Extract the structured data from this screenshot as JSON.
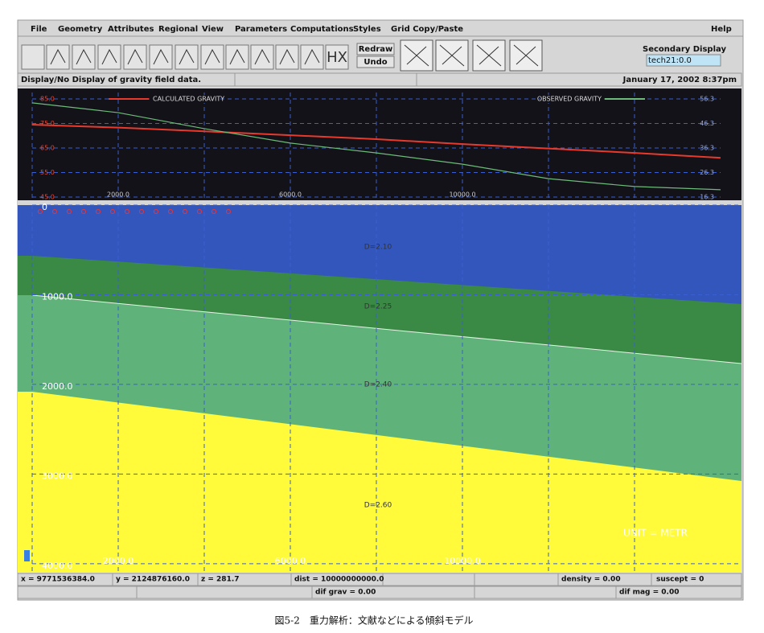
{
  "menu": [
    "File",
    "Geometry",
    "Attributes",
    "Regional",
    "View",
    "Parameters",
    "Computations",
    "Styles",
    "Grid Copy/Paste",
    "Help"
  ],
  "toolbar": {
    "redraw": "Redraw",
    "undo": "Undo",
    "icon_text": "HX",
    "secondary_display": "Secondary Display",
    "display_value": "tech21:0.0"
  },
  "status": {
    "message": "Display/No Display of gravity field data.",
    "datetime": "January 17, 2002 8:37pm"
  },
  "gravity_plot": {
    "type": "line",
    "x": [
      0,
      2000,
      4000,
      6000,
      8000,
      10000,
      12000,
      14000,
      16000
    ],
    "xlim": [
      0,
      16000
    ],
    "xticks": [
      {
        "value": 2000,
        "label": "2000.0"
      },
      {
        "value": 6000,
        "label": "6000.0"
      },
      {
        "value": 10000,
        "label": "10000.0"
      }
    ],
    "minor_xticks": [
      0,
      4000,
      8000,
      12000,
      14000
    ],
    "ylim": [
      45,
      85
    ],
    "yticks": [
      {
        "value": 85,
        "label": "85.0"
      },
      {
        "value": 75,
        "label": "75.0"
      },
      {
        "value": 65,
        "label": "65.0"
      },
      {
        "value": 55,
        "label": "55.0"
      },
      {
        "value": 45,
        "label": "45.0"
      }
    ],
    "y2lim": [
      16.3,
      56.3
    ],
    "y2ticks": [
      56.3,
      46.3,
      36.3,
      26.3,
      16.3
    ],
    "series": [
      {
        "name": "CALCULATED GRAVITY",
        "color": "#e83a2c",
        "values": [
          74.5,
          73.3,
          71.8,
          70.2,
          68.6,
          66.6,
          64.8,
          63.0,
          61.0
        ]
      },
      {
        "name": "OBSERVED GRAVITY",
        "color": "#6dbb7a",
        "axis": "y2",
        "values": [
          54.7,
          50.7,
          44.2,
          38.3,
          34.3,
          29.7,
          23.8,
          20.6,
          19.3
        ]
      }
    ]
  },
  "model": {
    "ylim": [
      0,
      4100
    ],
    "yticks": [
      0,
      {
        "value": 1000,
        "label": "1000.0"
      },
      {
        "value": 2000,
        "label": "2000.0"
      },
      {
        "value": 3000,
        "label": "3000.0"
      },
      {
        "value": 4000,
        "label": "4000.0"
      }
    ],
    "xticks": [
      {
        "value": 2000,
        "label": "2000.0"
      },
      {
        "value": 6000,
        "label": "6000.0"
      },
      {
        "value": 10000,
        "label": "10000.0"
      }
    ],
    "layers": [
      "D=2.10",
      "D=2.25",
      "D=2.40",
      "D=2.60"
    ],
    "unit": "UNIT = METR"
  },
  "readouts": {
    "x": "x = 9771536384.0",
    "y": "y = 2124876160.0",
    "z": "z = 281.7",
    "dist": "dist = 10000000000.0",
    "density": "density = 0.00",
    "suscept": "suscept = 0",
    "dif_grav": "dif grav = 0.00",
    "dif_mag": "dif mag = 0.00"
  },
  "caption": "図5-2　重力解析：文献などによる傾斜モデル"
}
